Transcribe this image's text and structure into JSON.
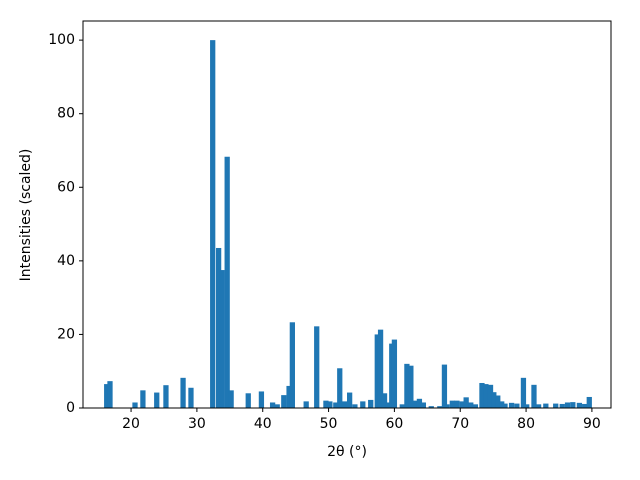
{
  "chart_data": {
    "type": "bar",
    "x_label": "2θ (°)",
    "y_label": "Intensities (scaled)",
    "color": "#1f77b4",
    "x": [
      16.3,
      16.8,
      20.6,
      21.8,
      23.9,
      25.3,
      27.9,
      29.1,
      32.4,
      33.3,
      33.8,
      34.6,
      35.2,
      37.8,
      39.8,
      41.5,
      42.2,
      43.2,
      44.0,
      44.5,
      46.6,
      48.2,
      49.6,
      50.2,
      51.1,
      51.7,
      52.4,
      53.2,
      54.0,
      55.2,
      56.4,
      57.4,
      57.9,
      58.5,
      59.1,
      59.6,
      60.0,
      61.2,
      61.9,
      62.5,
      63.1,
      63.8,
      64.4,
      65.6,
      66.9,
      67.6,
      68.0,
      68.8,
      69.5,
      70.3,
      70.9,
      71.6,
      72.3,
      73.3,
      73.9,
      74.6,
      75.1,
      75.7,
      76.3,
      76.8,
      77.8,
      78.6,
      79.6,
      80.1,
      81.2,
      81.9,
      83.0,
      84.5,
      85.5,
      86.3,
      87.1,
      88.1,
      88.9,
      89.6
    ],
    "values": [
      6.5,
      7.3,
      1.5,
      4.8,
      4.2,
      6.2,
      8.2,
      5.5,
      100,
      43.5,
      37.5,
      68.3,
      4.8,
      4.0,
      4.5,
      1.5,
      1.0,
      3.5,
      6.0,
      23.3,
      1.8,
      22.2,
      2.0,
      1.8,
      1.5,
      10.8,
      1.8,
      4.2,
      1.0,
      1.8,
      2.2,
      20.0,
      21.3,
      4.0,
      1.5,
      17.5,
      18.6,
      1.0,
      12.0,
      11.5,
      2.0,
      2.5,
      1.5,
      0.5,
      0.5,
      11.8,
      1.0,
      2.0,
      2.0,
      1.8,
      2.9,
      1.5,
      1.0,
      6.8,
      6.5,
      6.3,
      4.3,
      3.4,
      1.8,
      1.2,
      1.4,
      1.2,
      8.2,
      1.0,
      6.3,
      1.0,
      1.2,
      1.2,
      1.1,
      1.5,
      1.6,
      1.4,
      1.1,
      3.0
    ],
    "xlim": [
      12.7,
      92.9
    ],
    "ylim": [
      0,
      105.2
    ],
    "xticks": [
      20,
      30,
      40,
      50,
      60,
      70,
      80,
      90
    ],
    "yticks": [
      0,
      20,
      40,
      60,
      80,
      100
    ]
  }
}
